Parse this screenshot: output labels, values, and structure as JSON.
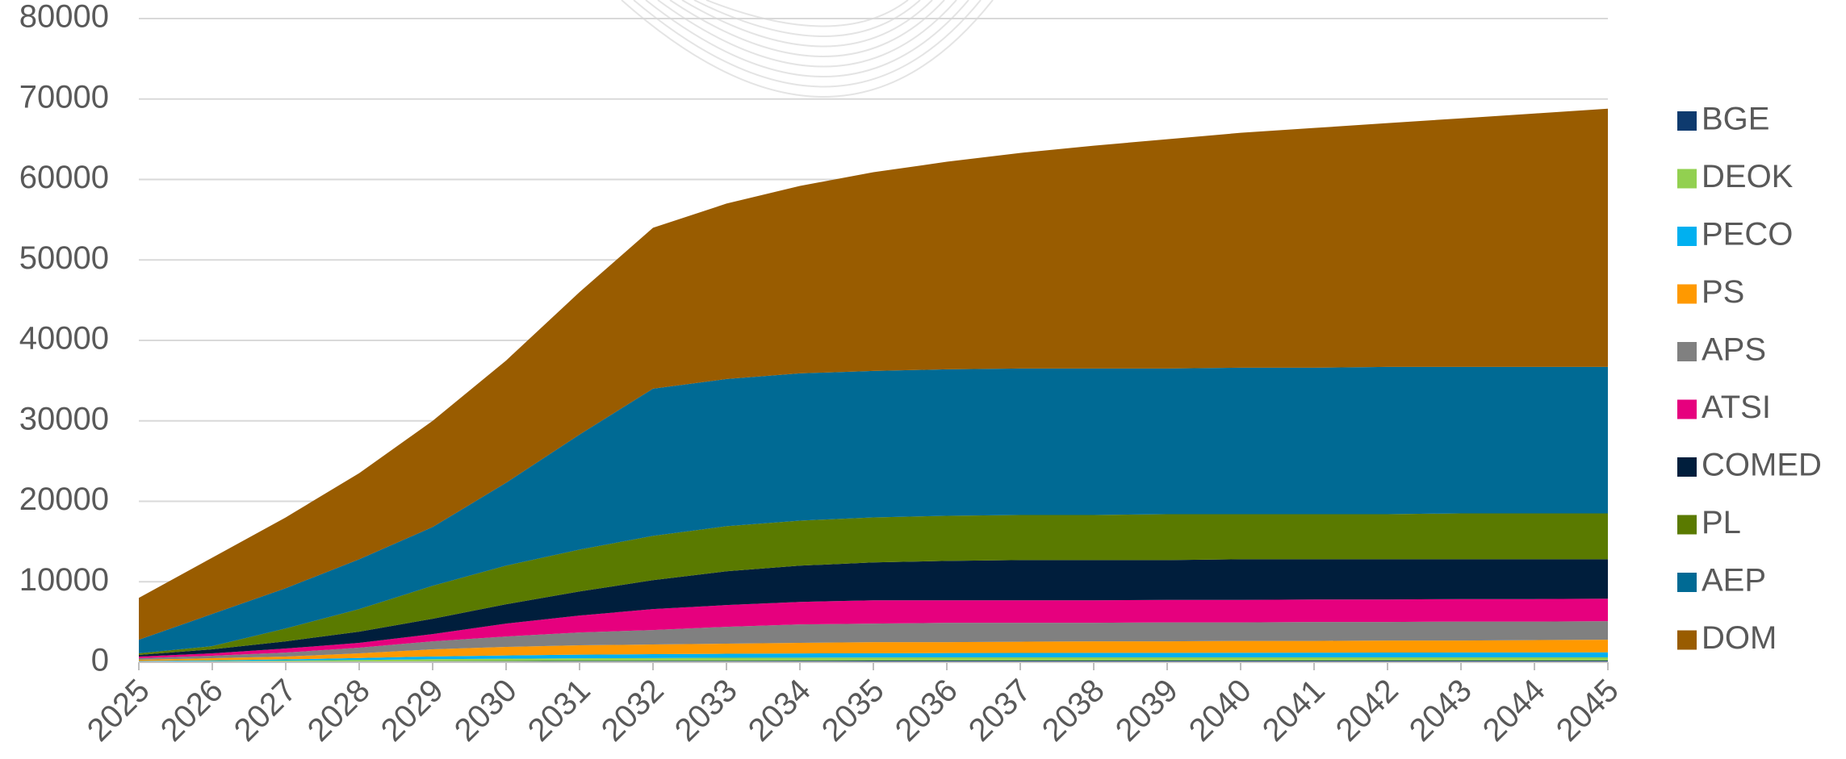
{
  "chart_data": {
    "type": "stacked_area",
    "categories": [
      "2025",
      "2026",
      "2027",
      "2028",
      "2029",
      "2030",
      "2031",
      "2032",
      "2033",
      "2034",
      "2035",
      "2036",
      "2037",
      "2038",
      "2039",
      "2040",
      "2041",
      "2042",
      "2043",
      "2044",
      "2045"
    ],
    "ylim": [
      0,
      80000
    ],
    "yticks": [
      0,
      10000,
      20000,
      30000,
      40000,
      50000,
      60000,
      70000,
      80000
    ],
    "grid": true,
    "legend": "right",
    "series": [
      {
        "name": "BGE",
        "color": "#0e3a6e",
        "values": [
          50,
          60,
          80,
          100,
          120,
          140,
          160,
          170,
          180,
          190,
          200,
          200,
          200,
          200,
          200,
          200,
          200,
          200,
          200,
          200,
          200
        ]
      },
      {
        "name": "DEOK",
        "color": "#92d050",
        "values": [
          50,
          80,
          120,
          180,
          250,
          300,
          330,
          350,
          370,
          380,
          390,
          400,
          400,
          400,
          400,
          400,
          400,
          400,
          400,
          400,
          400
        ]
      },
      {
        "name": "PECO",
        "color": "#00b0f0",
        "values": [
          50,
          100,
          150,
          250,
          350,
          400,
          450,
          480,
          500,
          520,
          530,
          540,
          550,
          560,
          570,
          580,
          590,
          600,
          610,
          620,
          630
        ]
      },
      {
        "name": "PS",
        "color": "#ff9900",
        "values": [
          150,
          260,
          350,
          570,
          880,
          1060,
          1160,
          1200,
          1250,
          1310,
          1380,
          1360,
          1400,
          1440,
          1430,
          1470,
          1460,
          1500,
          1490,
          1530,
          1570
        ]
      },
      {
        "name": "APS",
        "color": "#808080",
        "values": [
          200,
          300,
          500,
          700,
          1000,
          1300,
          1600,
          1800,
          2100,
          2300,
          2300,
          2400,
          2350,
          2300,
          2350,
          2300,
          2350,
          2300,
          2350,
          2300,
          2300
        ]
      },
      {
        "name": "ATSI",
        "color": "#e6007e",
        "values": [
          200,
          300,
          500,
          600,
          900,
          1600,
          2100,
          2600,
          2700,
          2800,
          2900,
          2800,
          2800,
          2800,
          2800,
          2800,
          2800,
          2800,
          2800,
          2800,
          2800
        ]
      },
      {
        "name": "COMED",
        "color": "#001e3c",
        "values": [
          200,
          500,
          900,
          1400,
          1900,
          2400,
          3000,
          3600,
          4200,
          4500,
          4700,
          4900,
          5000,
          5000,
          4950,
          5050,
          5000,
          5000,
          4950,
          4950,
          4900
        ]
      },
      {
        "name": "PL",
        "color": "#5a7a00",
        "values": [
          200,
          400,
          1600,
          2800,
          4100,
          4800,
          5200,
          5500,
          5600,
          5600,
          5600,
          5600,
          5600,
          5600,
          5700,
          5600,
          5600,
          5600,
          5700,
          5700,
          5700
        ]
      },
      {
        "name": "AEP",
        "color": "#006a94",
        "values": [
          1700,
          4000,
          5000,
          6200,
          7300,
          10300,
          14300,
          18300,
          18300,
          18300,
          18200,
          18200,
          18200,
          18200,
          18100,
          18200,
          18200,
          18300,
          18200,
          18200,
          18200
        ]
      },
      {
        "name": "DOM",
        "color": "#995c00",
        "values": [
          5200,
          7000,
          8800,
          10700,
          13200,
          15200,
          17700,
          20000,
          21800,
          23300,
          24700,
          25800,
          26800,
          27700,
          28500,
          29200,
          29800,
          30300,
          30900,
          31500,
          32100
        ]
      }
    ]
  }
}
